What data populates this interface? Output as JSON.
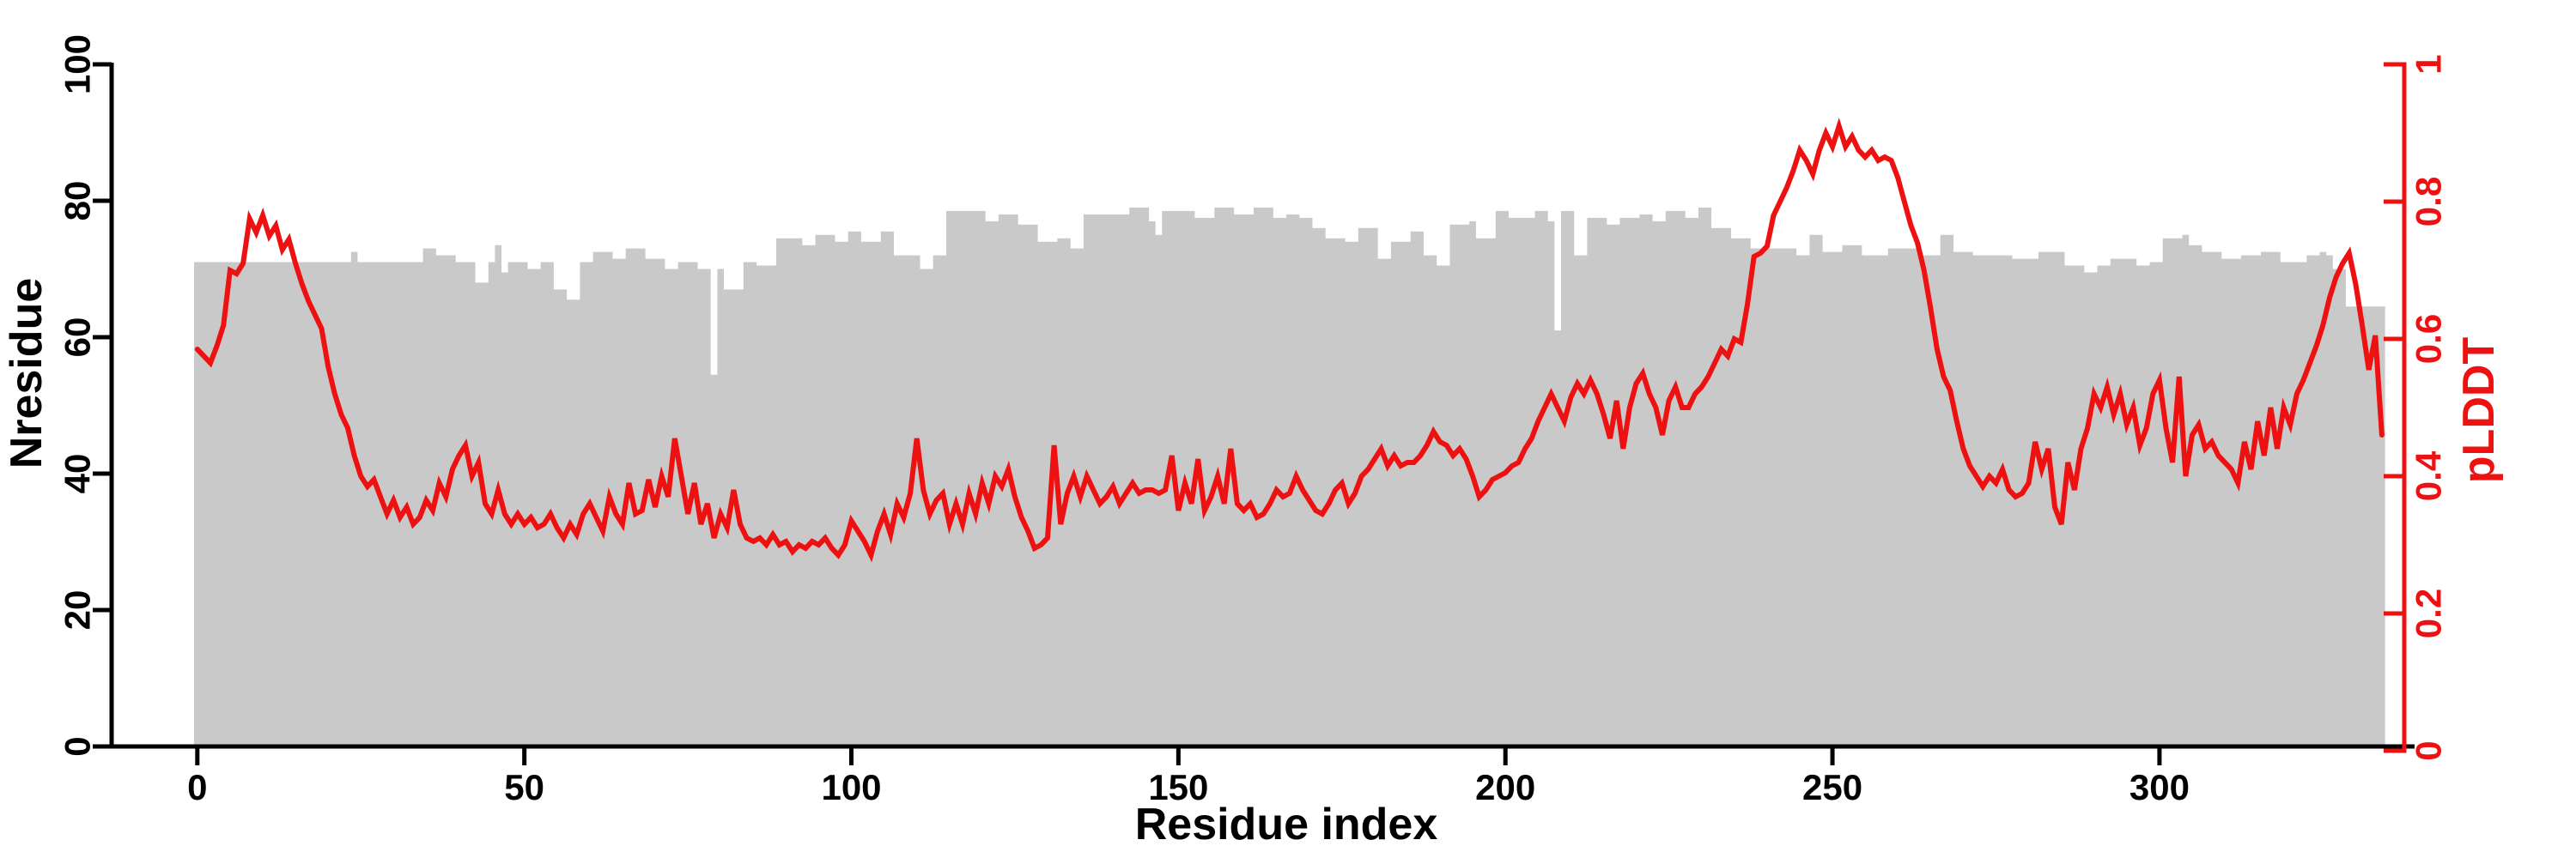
{
  "figure": {
    "xlabel": "Residue index",
    "ylabel_left": "Nresidue",
    "ylabel_right": "pLDDT"
  },
  "colors": {
    "background": "#ffffff",
    "bar_fill": "#c9c9c9",
    "line_color": "#ee1111",
    "left_axis_color": "#000000",
    "right_axis_color": "#ee1111"
  },
  "chart_data": {
    "type": "bar+line-dual-axis",
    "title": "",
    "xlabel": "Residue index",
    "ylabel_left": "Nresidue",
    "ylabel_right": "pLDDT",
    "x_start": 0,
    "x_step": 1,
    "xlim": [
      0,
      335
    ],
    "ylim_left": [
      0,
      100
    ],
    "ylim_right": [
      0,
      1
    ],
    "x_ticks": [
      "0",
      "50",
      "100",
      "150",
      "200",
      "250",
      "300"
    ],
    "left_ticks": [
      "0",
      "20",
      "40",
      "60",
      "80",
      "100"
    ],
    "right_ticks": [
      "0",
      "0.2",
      "0.4",
      "0.6",
      "0.8",
      "1"
    ],
    "grid": false,
    "legend": "none",
    "series": [
      {
        "name": "Nresidue",
        "type": "bar",
        "axis": "left",
        "values": [
          71,
          71,
          71,
          71,
          71,
          71,
          71,
          71,
          71,
          71,
          71,
          71,
          71,
          71,
          71,
          71,
          71,
          71,
          71,
          71,
          71,
          71,
          71,
          71,
          72.5,
          71,
          71,
          71,
          71,
          71,
          71,
          71,
          71,
          71,
          71,
          73,
          73,
          72,
          72,
          72,
          71,
          71,
          71,
          68,
          68,
          71,
          73.5,
          69.5,
          71,
          71,
          71,
          70,
          70,
          71,
          71,
          67,
          67,
          65.5,
          65.5,
          71,
          71,
          72.5,
          72.5,
          72.5,
          71.5,
          71.5,
          73,
          73,
          73,
          71.5,
          71.5,
          71.5,
          70,
          70,
          71,
          71,
          71,
          70,
          70,
          54.5,
          70,
          67,
          67,
          67,
          71,
          71,
          70.5,
          70.5,
          70.5,
          74.5,
          74.5,
          74.5,
          74.5,
          73.5,
          73.5,
          75,
          75,
          75,
          74,
          74,
          75.5,
          75.5,
          74,
          74,
          74,
          75.5,
          75.5,
          72,
          72,
          72,
          72,
          70,
          70,
          72,
          72,
          78.5,
          78.5,
          78.5,
          78.5,
          78.5,
          78.5,
          77,
          77,
          78,
          78,
          78,
          76.5,
          76.5,
          76.5,
          74,
          74,
          74,
          74.5,
          74.5,
          73,
          73,
          78,
          78,
          78,
          78,
          78,
          78,
          78,
          79,
          79,
          79,
          77,
          75,
          78.5,
          78.5,
          78.5,
          78.5,
          78.5,
          77.5,
          77.5,
          77.5,
          79,
          79,
          79,
          78,
          78,
          78,
          79,
          79,
          79,
          77.5,
          77.5,
          78,
          78,
          77.5,
          77.5,
          76,
          76,
          74.5,
          74.5,
          74.5,
          74,
          74,
          76,
          76,
          76,
          71.5,
          71.5,
          74,
          74,
          74,
          75.5,
          75.5,
          72,
          72,
          70.5,
          70.5,
          76.5,
          76.5,
          76.5,
          77,
          74.5,
          74.5,
          74.5,
          78.5,
          78.5,
          77.5,
          77.5,
          77.5,
          77.5,
          78.5,
          78.5,
          77,
          61,
          78.5,
          78.5,
          72,
          72,
          77.5,
          77.5,
          77.5,
          76.5,
          76.5,
          77.5,
          77.5,
          77.5,
          78,
          78,
          77,
          77,
          78.5,
          78.5,
          78.5,
          77.5,
          77.5,
          79,
          79,
          76,
          76,
          76,
          74.5,
          74.5,
          74.5,
          73,
          73,
          73,
          73,
          73,
          73,
          73,
          72,
          72,
          75,
          75,
          72.5,
          72.5,
          72.5,
          73.5,
          73.5,
          73.5,
          72,
          72,
          72,
          72,
          73,
          73,
          73,
          73,
          73,
          72,
          72,
          72,
          75,
          75,
          72.5,
          72.5,
          72.5,
          72,
          72,
          72,
          72,
          72,
          72,
          71.5,
          71.5,
          71.5,
          71.5,
          72.5,
          72.5,
          72.5,
          72.5,
          70.5,
          70.5,
          70.5,
          69.5,
          69.5,
          70.5,
          70.5,
          71.5,
          71.5,
          71.5,
          71.5,
          70.5,
          70.5,
          71,
          71,
          74.5,
          74.5,
          74.5,
          75,
          73.5,
          73.5,
          72.5,
          72.5,
          72.5,
          71.5,
          71.5,
          71.5,
          72,
          72,
          72,
          72.5,
          72.5,
          72.5,
          71,
          71,
          71,
          71,
          72,
          72,
          72.5,
          72,
          70,
          70,
          64.5,
          64.5,
          64.5,
          64.5,
          64.5,
          64.5
        ]
      },
      {
        "name": "pLDDT",
        "type": "line",
        "axis": "right",
        "values": [
          0.585,
          0.575,
          0.565,
          0.59,
          0.62,
          0.7,
          0.695,
          0.71,
          0.775,
          0.755,
          0.78,
          0.75,
          0.765,
          0.73,
          0.745,
          0.71,
          0.68,
          0.655,
          0.635,
          0.615,
          0.56,
          0.52,
          0.49,
          0.47,
          0.43,
          0.4,
          0.385,
          0.395,
          0.37,
          0.345,
          0.365,
          0.34,
          0.355,
          0.33,
          0.34,
          0.365,
          0.35,
          0.39,
          0.37,
          0.41,
          0.43,
          0.445,
          0.4,
          0.42,
          0.36,
          0.345,
          0.38,
          0.345,
          0.33,
          0.345,
          0.33,
          0.34,
          0.325,
          0.33,
          0.345,
          0.325,
          0.31,
          0.33,
          0.315,
          0.345,
          0.36,
          0.34,
          0.32,
          0.37,
          0.345,
          0.33,
          0.39,
          0.345,
          0.35,
          0.395,
          0.355,
          0.4,
          0.37,
          0.455,
          0.4,
          0.345,
          0.39,
          0.33,
          0.36,
          0.31,
          0.345,
          0.325,
          0.38,
          0.33,
          0.31,
          0.305,
          0.31,
          0.3,
          0.315,
          0.3,
          0.305,
          0.29,
          0.3,
          0.295,
          0.305,
          0.3,
          0.31,
          0.295,
          0.285,
          0.3,
          0.335,
          0.32,
          0.305,
          0.285,
          0.32,
          0.345,
          0.315,
          0.36,
          0.34,
          0.375,
          0.455,
          0.38,
          0.345,
          0.365,
          0.375,
          0.33,
          0.36,
          0.33,
          0.375,
          0.345,
          0.39,
          0.36,
          0.4,
          0.385,
          0.41,
          0.37,
          0.34,
          0.32,
          0.295,
          0.3,
          0.31,
          0.445,
          0.33,
          0.375,
          0.4,
          0.37,
          0.4,
          0.38,
          0.36,
          0.37,
          0.385,
          0.36,
          0.375,
          0.39,
          0.375,
          0.38,
          0.38,
          0.375,
          0.38,
          0.43,
          0.35,
          0.39,
          0.36,
          0.425,
          0.35,
          0.37,
          0.4,
          0.36,
          0.44,
          0.36,
          0.35,
          0.36,
          0.34,
          0.345,
          0.36,
          0.38,
          0.37,
          0.375,
          0.4,
          0.38,
          0.365,
          0.35,
          0.345,
          0.36,
          0.38,
          0.39,
          0.36,
          0.375,
          0.4,
          0.41,
          0.425,
          0.44,
          0.415,
          0.43,
          0.415,
          0.42,
          0.42,
          0.43,
          0.445,
          0.465,
          0.45,
          0.445,
          0.43,
          0.44,
          0.425,
          0.4,
          0.37,
          0.38,
          0.395,
          0.4,
          0.405,
          0.415,
          0.42,
          0.44,
          0.455,
          0.48,
          0.5,
          0.52,
          0.5,
          0.48,
          0.515,
          0.535,
          0.52,
          0.54,
          0.52,
          0.49,
          0.455,
          0.51,
          0.44,
          0.5,
          0.535,
          0.55,
          0.52,
          0.5,
          0.46,
          0.51,
          0.53,
          0.5,
          0.5,
          0.52,
          0.53,
          0.545,
          0.565,
          0.585,
          0.575,
          0.6,
          0.595,
          0.65,
          0.72,
          0.725,
          0.735,
          0.78,
          0.8,
          0.82,
          0.845,
          0.875,
          0.86,
          0.84,
          0.875,
          0.9,
          0.88,
          0.91,
          0.88,
          0.895,
          0.875,
          0.865,
          0.875,
          0.86,
          0.865,
          0.86,
          0.835,
          0.8,
          0.765,
          0.74,
          0.7,
          0.645,
          0.585,
          0.545,
          0.525,
          0.48,
          0.44,
          0.415,
          0.4,
          0.385,
          0.4,
          0.39,
          0.41,
          0.38,
          0.37,
          0.375,
          0.39,
          0.45,
          0.41,
          0.44,
          0.355,
          0.33,
          0.42,
          0.38,
          0.44,
          0.47,
          0.52,
          0.5,
          0.53,
          0.49,
          0.52,
          0.475,
          0.5,
          0.445,
          0.47,
          0.52,
          0.54,
          0.47,
          0.42,
          0.545,
          0.4,
          0.46,
          0.475,
          0.44,
          0.45,
          0.43,
          0.42,
          0.41,
          0.39,
          0.45,
          0.41,
          0.48,
          0.43,
          0.5,
          0.44,
          0.5,
          0.475,
          0.52,
          0.54,
          0.565,
          0.59,
          0.62,
          0.66,
          0.69,
          0.71,
          0.725,
          0.68,
          0.62,
          0.555,
          0.605,
          0.46
        ]
      }
    ]
  }
}
